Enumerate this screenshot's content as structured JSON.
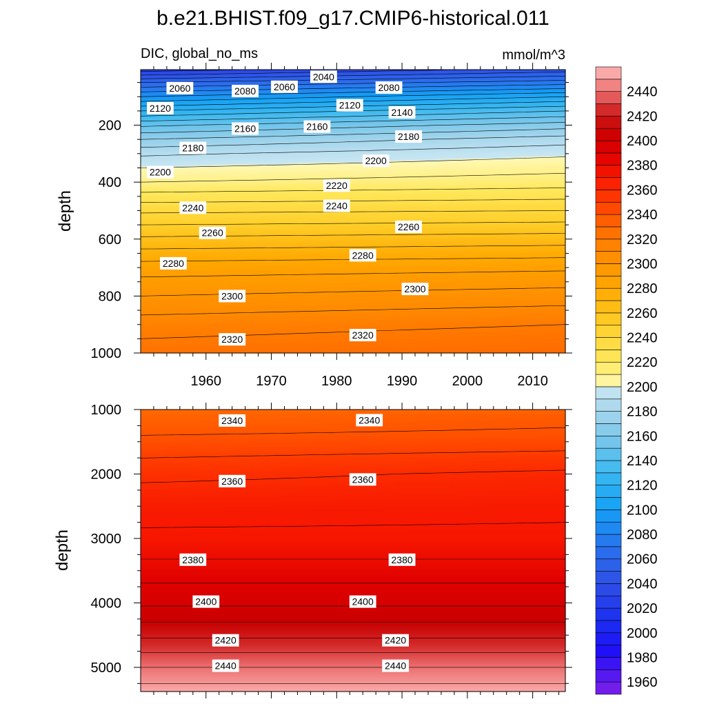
{
  "chart_data": {
    "type": "contour",
    "title": "b.e21.BHIST.f09_g17.CMIP6-historical.011",
    "left_subtitle": "DIC, global_no_ms",
    "right_subtitle": "mmol/m^3",
    "xlim": [
      1950,
      2015
    ],
    "x_ticks": [
      1960,
      1970,
      1980,
      1990,
      2000,
      2010
    ],
    "colorbar": {
      "min": 1950,
      "max": 2460,
      "step": 10,
      "labels": [
        1960,
        1980,
        2000,
        2020,
        2040,
        2060,
        2080,
        2100,
        2120,
        2140,
        2160,
        2180,
        2200,
        2220,
        2240,
        2260,
        2280,
        2300,
        2320,
        2340,
        2360,
        2380,
        2400,
        2420,
        2440
      ]
    },
    "panels": [
      {
        "name": "upper",
        "ylabel": "depth",
        "ylim": [
          1000,
          5
        ],
        "y_ticks": [
          200,
          400,
          600,
          800,
          1000
        ],
        "profiles": [
          {
            "depth": 5,
            "start": 2025,
            "end": 2045
          },
          {
            "depth": 50,
            "start": 2060,
            "end": 2075
          },
          {
            "depth": 100,
            "start": 2090,
            "end": 2110
          },
          {
            "depth": 150,
            "start": 2120,
            "end": 2140
          },
          {
            "depth": 200,
            "start": 2148,
            "end": 2165
          },
          {
            "depth": 250,
            "start": 2170,
            "end": 2185
          },
          {
            "depth": 300,
            "start": 2188,
            "end": 2198
          },
          {
            "depth": 350,
            "start": 2200,
            "end": 2207
          },
          {
            "depth": 400,
            "start": 2210,
            "end": 2215
          },
          {
            "depth": 500,
            "start": 2238,
            "end": 2240
          },
          {
            "depth": 600,
            "start": 2262,
            "end": 2265
          },
          {
            "depth": 700,
            "start": 2285,
            "end": 2288
          },
          {
            "depth": 800,
            "start": 2300,
            "end": 2305
          },
          {
            "depth": 900,
            "start": 2315,
            "end": 2320
          },
          {
            "depth": 1000,
            "start": 2325,
            "end": 2330
          }
        ],
        "labels": [
          {
            "value": "2040",
            "year": 1978,
            "depth": 30
          },
          {
            "value": "2060",
            "year": 1956,
            "depth": 70
          },
          {
            "value": "2060",
            "year": 1972,
            "depth": 65
          },
          {
            "value": "2080",
            "year": 1966,
            "depth": 80
          },
          {
            "value": "2080",
            "year": 1988,
            "depth": 68
          },
          {
            "value": "2120",
            "year": 1953,
            "depth": 140
          },
          {
            "value": "2120",
            "year": 1982,
            "depth": 130
          },
          {
            "value": "2140",
            "year": 1990,
            "depth": 155
          },
          {
            "value": "2160",
            "year": 1966,
            "depth": 212
          },
          {
            "value": "2160",
            "year": 1977,
            "depth": 205
          },
          {
            "value": "2180",
            "year": 1958,
            "depth": 280
          },
          {
            "value": "2180",
            "year": 1991,
            "depth": 240
          },
          {
            "value": "2200",
            "year": 1953,
            "depth": 365
          },
          {
            "value": "2200",
            "year": 1986,
            "depth": 325
          },
          {
            "value": "2220",
            "year": 1980,
            "depth": 412
          },
          {
            "value": "2240",
            "year": 1958,
            "depth": 490
          },
          {
            "value": "2240",
            "year": 1980,
            "depth": 483
          },
          {
            "value": "2260",
            "year": 1961,
            "depth": 578
          },
          {
            "value": "2260",
            "year": 1991,
            "depth": 557
          },
          {
            "value": "2280",
            "year": 1955,
            "depth": 685
          },
          {
            "value": "2280",
            "year": 1984,
            "depth": 657
          },
          {
            "value": "2300",
            "year": 1964,
            "depth": 800
          },
          {
            "value": "2300",
            "year": 1992,
            "depth": 775
          },
          {
            "value": "2320",
            "year": 1964,
            "depth": 952
          },
          {
            "value": "2320",
            "year": 1984,
            "depth": 937
          }
        ]
      },
      {
        "name": "lower",
        "ylabel": "depth",
        "ylim": [
          5375,
          1000
        ],
        "y_ticks": [
          1000,
          2000,
          3000,
          4000,
          5000
        ],
        "profiles": [
          {
            "depth": 1000,
            "start": 2330,
            "end": 2333
          },
          {
            "depth": 1100,
            "start": 2333,
            "end": 2337
          },
          {
            "depth": 1400,
            "start": 2340,
            "end": 2342
          },
          {
            "depth": 2000,
            "start": 2357,
            "end": 2362
          },
          {
            "depth": 2500,
            "start": 2368,
            "end": 2369
          },
          {
            "depth": 3000,
            "start": 2371,
            "end": 2371
          },
          {
            "depth": 3500,
            "start": 2385,
            "end": 2385
          },
          {
            "depth": 4000,
            "start": 2398,
            "end": 2398
          },
          {
            "depth": 4500,
            "start": 2418,
            "end": 2418
          },
          {
            "depth": 5000,
            "start": 2440,
            "end": 2440
          },
          {
            "depth": 5375,
            "start": 2455,
            "end": 2455
          }
        ],
        "labels": [
          {
            "value": "2340",
            "year": 1964,
            "depth": 1170
          },
          {
            "value": "2340",
            "year": 1985,
            "depth": 1165
          },
          {
            "value": "2360",
            "year": 1964,
            "depth": 2110
          },
          {
            "value": "2360",
            "year": 1984,
            "depth": 2085
          },
          {
            "value": "2380",
            "year": 1958,
            "depth": 3330
          },
          {
            "value": "2380",
            "year": 1990,
            "depth": 3330
          },
          {
            "value": "2400",
            "year": 1960,
            "depth": 3980
          },
          {
            "value": "2400",
            "year": 1984,
            "depth": 3980
          },
          {
            "value": "2420",
            "year": 1963,
            "depth": 4580
          },
          {
            "value": "2420",
            "year": 1989,
            "depth": 4580
          },
          {
            "value": "2440",
            "year": 1963,
            "depth": 4975
          },
          {
            "value": "2440",
            "year": 1989,
            "depth": 4975
          }
        ]
      }
    ]
  }
}
